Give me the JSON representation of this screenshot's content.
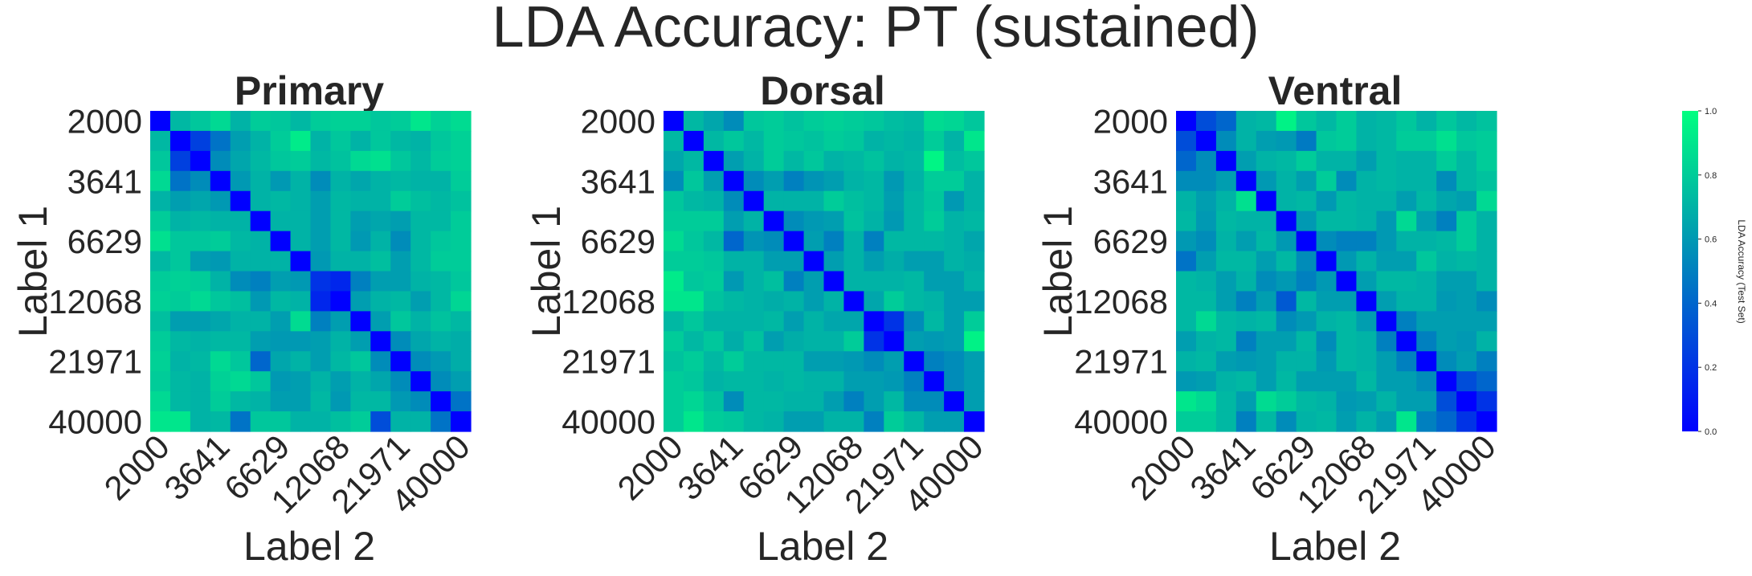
{
  "figure": {
    "title": "LDA Accuracy: PT (sustained)"
  },
  "colorbar": {
    "label": "LDA Accuracy (Test Set)",
    "min": 0.0,
    "max": 1.0,
    "ticks": [
      "0.0",
      "0.2",
      "0.4",
      "0.6",
      "0.8",
      "1.0"
    ],
    "color_low": "#0000ff",
    "color_high": "#00ff80",
    "colormap": "winter"
  },
  "chart_data": [
    {
      "type": "heatmap",
      "title": "Primary",
      "xlabel": "Label 2",
      "ylabel": "Label 1",
      "x_ticklabels": [
        "2000",
        "3641",
        "6629",
        "12068",
        "21971",
        "40000"
      ],
      "y_ticklabels": [
        "2000",
        "3641",
        "6629",
        "12068",
        "21971",
        "40000"
      ],
      "size": 16,
      "zlim": [
        0,
        1
      ],
      "values": [
        [
          0.0,
          0.72,
          0.78,
          0.85,
          0.7,
          0.8,
          0.78,
          0.72,
          0.8,
          0.82,
          0.82,
          0.78,
          0.8,
          0.9,
          0.82,
          0.86
        ],
        [
          0.72,
          0.0,
          0.25,
          0.45,
          0.62,
          0.7,
          0.8,
          0.92,
          0.7,
          0.78,
          0.7,
          0.78,
          0.72,
          0.7,
          0.78,
          0.82
        ],
        [
          0.78,
          0.25,
          0.0,
          0.55,
          0.65,
          0.72,
          0.78,
          0.8,
          0.72,
          0.76,
          0.85,
          0.88,
          0.78,
          0.72,
          0.8,
          0.82
        ],
        [
          0.85,
          0.45,
          0.55,
          0.0,
          0.6,
          0.7,
          0.6,
          0.7,
          0.55,
          0.7,
          0.65,
          0.7,
          0.72,
          0.7,
          0.7,
          0.8
        ],
        [
          0.7,
          0.62,
          0.65,
          0.6,
          0.0,
          0.7,
          0.72,
          0.7,
          0.62,
          0.72,
          0.7,
          0.7,
          0.8,
          0.75,
          0.72,
          0.76
        ],
        [
          0.8,
          0.7,
          0.72,
          0.7,
          0.7,
          0.0,
          0.7,
          0.7,
          0.62,
          0.72,
          0.62,
          0.65,
          0.62,
          0.72,
          0.72,
          0.8
        ],
        [
          0.88,
          0.78,
          0.78,
          0.8,
          0.72,
          0.7,
          0.0,
          0.7,
          0.62,
          0.72,
          0.6,
          0.7,
          0.55,
          0.72,
          0.78,
          0.8
        ],
        [
          0.72,
          0.78,
          0.62,
          0.6,
          0.7,
          0.7,
          0.7,
          0.0,
          0.6,
          0.7,
          0.7,
          0.75,
          0.62,
          0.72,
          0.8,
          0.8
        ],
        [
          0.8,
          0.82,
          0.8,
          0.7,
          0.55,
          0.5,
          0.62,
          0.6,
          0.2,
          0.15,
          0.5,
          0.62,
          0.62,
          0.7,
          0.72,
          0.78
        ],
        [
          0.82,
          0.8,
          0.85,
          0.78,
          0.75,
          0.6,
          0.72,
          0.7,
          0.15,
          0.0,
          0.62,
          0.7,
          0.72,
          0.62,
          0.72,
          0.84
        ],
        [
          0.75,
          0.62,
          0.62,
          0.65,
          0.7,
          0.7,
          0.62,
          0.86,
          0.5,
          0.62,
          0.0,
          0.62,
          0.78,
          0.7,
          0.76,
          0.72
        ],
        [
          0.8,
          0.72,
          0.7,
          0.72,
          0.72,
          0.62,
          0.6,
          0.6,
          0.62,
          0.7,
          0.62,
          0.0,
          0.55,
          0.65,
          0.7,
          0.68
        ],
        [
          0.82,
          0.7,
          0.72,
          0.85,
          0.78,
          0.4,
          0.65,
          0.7,
          0.62,
          0.72,
          0.78,
          0.55,
          0.0,
          0.55,
          0.6,
          0.68
        ],
        [
          0.8,
          0.72,
          0.7,
          0.82,
          0.85,
          0.78,
          0.6,
          0.62,
          0.7,
          0.62,
          0.7,
          0.65,
          0.55,
          0.0,
          0.55,
          0.62
        ],
        [
          0.85,
          0.72,
          0.7,
          0.8,
          0.72,
          0.7,
          0.62,
          0.62,
          0.72,
          0.6,
          0.72,
          0.72,
          0.6,
          0.55,
          0.0,
          0.45
        ],
        [
          0.9,
          0.9,
          0.7,
          0.72,
          0.45,
          0.78,
          0.78,
          0.7,
          0.7,
          0.75,
          0.8,
          0.3,
          0.7,
          0.7,
          0.45,
          0.0
        ]
      ]
    },
    {
      "type": "heatmap",
      "title": "Dorsal",
      "xlabel": "Label 2",
      "ylabel": "Label 1",
      "x_ticklabels": [
        "2000",
        "3641",
        "6629",
        "12068",
        "21971",
        "40000"
      ],
      "y_ticklabels": [
        "2000",
        "3641",
        "6629",
        "12068",
        "21971",
        "40000"
      ],
      "size": 16,
      "zlim": [
        0,
        1
      ],
      "values": [
        [
          0.0,
          0.72,
          0.65,
          0.55,
          0.78,
          0.8,
          0.76,
          0.8,
          0.82,
          0.8,
          0.78,
          0.74,
          0.72,
          0.86,
          0.84,
          0.78
        ],
        [
          0.72,
          0.0,
          0.72,
          0.78,
          0.72,
          0.8,
          0.78,
          0.76,
          0.8,
          0.78,
          0.7,
          0.72,
          0.7,
          0.8,
          0.7,
          0.9
        ],
        [
          0.65,
          0.72,
          0.0,
          0.62,
          0.7,
          0.8,
          0.72,
          0.78,
          0.7,
          0.72,
          0.76,
          0.7,
          0.72,
          0.96,
          0.74,
          0.78
        ],
        [
          0.55,
          0.78,
          0.62,
          0.0,
          0.55,
          0.62,
          0.5,
          0.58,
          0.62,
          0.7,
          0.72,
          0.6,
          0.7,
          0.8,
          0.8,
          0.7
        ],
        [
          0.78,
          0.72,
          0.7,
          0.55,
          0.0,
          0.7,
          0.7,
          0.7,
          0.8,
          0.75,
          0.72,
          0.62,
          0.72,
          0.78,
          0.6,
          0.7
        ],
        [
          0.8,
          0.8,
          0.8,
          0.62,
          0.7,
          0.0,
          0.55,
          0.6,
          0.62,
          0.76,
          0.7,
          0.6,
          0.72,
          0.8,
          0.7,
          0.72
        ],
        [
          0.86,
          0.78,
          0.72,
          0.4,
          0.58,
          0.55,
          0.0,
          0.62,
          0.5,
          0.7,
          0.5,
          0.72,
          0.72,
          0.72,
          0.7,
          0.65
        ],
        [
          0.8,
          0.8,
          0.78,
          0.7,
          0.7,
          0.62,
          0.62,
          0.0,
          0.62,
          0.7,
          0.62,
          0.68,
          0.62,
          0.62,
          0.7,
          0.68
        ],
        [
          0.92,
          0.78,
          0.8,
          0.6,
          0.7,
          0.75,
          0.5,
          0.62,
          0.0,
          0.7,
          0.7,
          0.7,
          0.72,
          0.62,
          0.62,
          0.7
        ],
        [
          0.9,
          0.9,
          0.76,
          0.72,
          0.7,
          0.68,
          0.7,
          0.62,
          0.7,
          0.0,
          0.65,
          0.8,
          0.72,
          0.7,
          0.62,
          0.62
        ],
        [
          0.72,
          0.78,
          0.7,
          0.7,
          0.7,
          0.72,
          0.62,
          0.7,
          0.65,
          0.65,
          0.0,
          0.2,
          0.55,
          0.72,
          0.62,
          0.8
        ],
        [
          0.8,
          0.72,
          0.78,
          0.68,
          0.76,
          0.62,
          0.68,
          0.7,
          0.7,
          0.8,
          0.2,
          0.0,
          0.62,
          0.6,
          0.62,
          0.95
        ],
        [
          0.76,
          0.8,
          0.72,
          0.8,
          0.72,
          0.72,
          0.72,
          0.62,
          0.62,
          0.6,
          0.55,
          0.62,
          0.0,
          0.5,
          0.55,
          0.62
        ],
        [
          0.8,
          0.78,
          0.7,
          0.72,
          0.72,
          0.7,
          0.72,
          0.7,
          0.7,
          0.62,
          0.62,
          0.6,
          0.5,
          0.0,
          0.55,
          0.62
        ],
        [
          0.8,
          0.84,
          0.76,
          0.55,
          0.72,
          0.72,
          0.7,
          0.7,
          0.62,
          0.5,
          0.62,
          0.72,
          0.55,
          0.55,
          0.0,
          0.62
        ],
        [
          0.8,
          0.9,
          0.8,
          0.78,
          0.72,
          0.7,
          0.62,
          0.62,
          0.7,
          0.7,
          0.5,
          0.8,
          0.72,
          0.62,
          0.62,
          0.0
        ]
      ]
    },
    {
      "type": "heatmap",
      "title": "Ventral",
      "xlabel": "Label 2",
      "ylabel": "Label 1",
      "x_ticklabels": [
        "2000",
        "3641",
        "6629",
        "12068",
        "21971",
        "40000"
      ],
      "y_ticklabels": [
        "2000",
        "3641",
        "6629",
        "12068",
        "21971",
        "40000"
      ],
      "size": 16,
      "zlim": [
        0,
        1
      ],
      "values": [
        [
          0.0,
          0.3,
          0.4,
          0.7,
          0.72,
          0.95,
          0.78,
          0.72,
          0.8,
          0.7,
          0.72,
          0.78,
          0.7,
          0.78,
          0.72,
          0.76
        ],
        [
          0.3,
          0.0,
          0.55,
          0.7,
          0.62,
          0.6,
          0.48,
          0.78,
          0.8,
          0.7,
          0.72,
          0.8,
          0.8,
          0.88,
          0.78,
          0.8
        ],
        [
          0.4,
          0.55,
          0.0,
          0.62,
          0.7,
          0.72,
          0.8,
          0.7,
          0.7,
          0.62,
          0.72,
          0.7,
          0.7,
          0.8,
          0.72,
          0.8
        ],
        [
          0.55,
          0.55,
          0.62,
          0.0,
          0.6,
          0.7,
          0.62,
          0.8,
          0.55,
          0.7,
          0.72,
          0.7,
          0.7,
          0.55,
          0.72,
          0.76
        ],
        [
          0.7,
          0.62,
          0.7,
          0.88,
          0.0,
          0.7,
          0.72,
          0.6,
          0.72,
          0.7,
          0.7,
          0.62,
          0.72,
          0.65,
          0.62,
          0.85
        ],
        [
          0.72,
          0.6,
          0.72,
          0.7,
          0.7,
          0.0,
          0.6,
          0.72,
          0.72,
          0.7,
          0.6,
          0.85,
          0.62,
          0.5,
          0.8,
          0.7
        ],
        [
          0.6,
          0.55,
          0.7,
          0.62,
          0.72,
          0.6,
          0.0,
          0.55,
          0.5,
          0.5,
          0.6,
          0.7,
          0.7,
          0.72,
          0.8,
          0.7
        ],
        [
          0.45,
          0.62,
          0.72,
          0.72,
          0.62,
          0.72,
          0.55,
          0.0,
          0.6,
          0.7,
          0.62,
          0.62,
          0.78,
          0.7,
          0.72,
          0.7
        ],
        [
          0.72,
          0.7,
          0.62,
          0.7,
          0.55,
          0.6,
          0.5,
          0.6,
          0.0,
          0.62,
          0.72,
          0.72,
          0.7,
          0.62,
          0.62,
          0.7
        ],
        [
          0.72,
          0.72,
          0.62,
          0.5,
          0.62,
          0.35,
          0.72,
          0.62,
          0.62,
          0.0,
          0.62,
          0.7,
          0.7,
          0.6,
          0.62,
          0.55
        ],
        [
          0.72,
          0.85,
          0.72,
          0.7,
          0.72,
          0.55,
          0.6,
          0.7,
          0.72,
          0.62,
          0.0,
          0.5,
          0.62,
          0.62,
          0.62,
          0.62
        ],
        [
          0.62,
          0.7,
          0.72,
          0.5,
          0.62,
          0.62,
          0.72,
          0.55,
          0.72,
          0.7,
          0.5,
          0.0,
          0.5,
          0.62,
          0.6,
          0.7
        ],
        [
          0.7,
          0.72,
          0.62,
          0.6,
          0.62,
          0.7,
          0.7,
          0.6,
          0.72,
          0.7,
          0.62,
          0.5,
          0.0,
          0.55,
          0.62,
          0.5
        ],
        [
          0.6,
          0.62,
          0.7,
          0.72,
          0.62,
          0.72,
          0.62,
          0.62,
          0.62,
          0.72,
          0.62,
          0.62,
          0.55,
          0.0,
          0.3,
          0.4
        ],
        [
          0.9,
          0.85,
          0.72,
          0.62,
          0.86,
          0.8,
          0.72,
          0.7,
          0.6,
          0.62,
          0.7,
          0.62,
          0.62,
          0.3,
          0.0,
          0.2
        ],
        [
          0.8,
          0.8,
          0.72,
          0.5,
          0.72,
          0.55,
          0.7,
          0.72,
          0.62,
          0.7,
          0.62,
          0.9,
          0.5,
          0.4,
          0.2,
          0.0
        ]
      ]
    }
  ]
}
